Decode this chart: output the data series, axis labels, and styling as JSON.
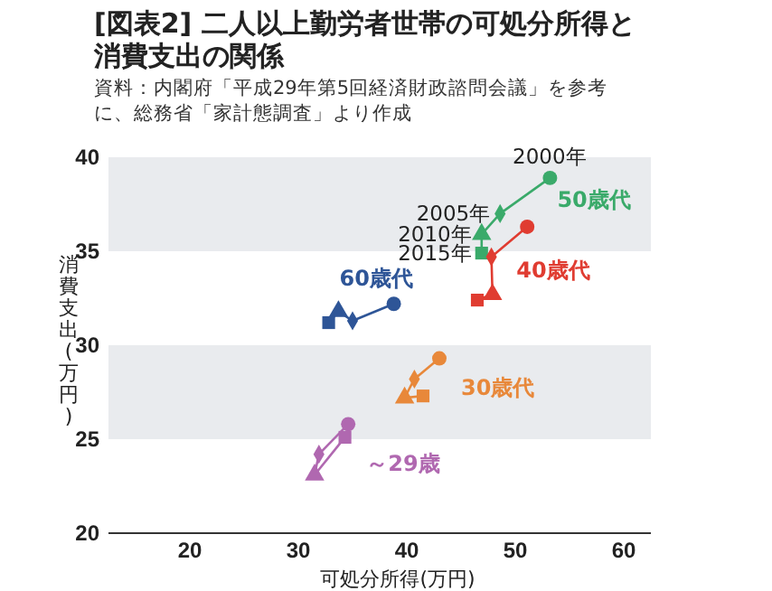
{
  "chart_data": {
    "type": "line",
    "title": "[図表2] 二人以上勤労者世帯の可処分所得と消費支出の関係",
    "annotations": [
      "資料：内閣府「平成29年第5回経済財政諮問会議」を参考に、総務省「家計態調査」より作成",
      {
        "text": "2000年",
        "x": 53.2,
        "y": 38.9
      },
      {
        "text": "2005年",
        "x": 48.6,
        "y": 37.0
      },
      {
        "text": "2010年",
        "x": 46.9,
        "y": 35.9
      },
      {
        "text": "2015年",
        "x": 46.9,
        "y": 34.9
      }
    ],
    "xlabel": "可処分所得(万円)",
    "ylabel": "消費支出(万円)",
    "xlim": [
      12.5,
      62.5
    ],
    "xticks": [
      20,
      30,
      40,
      50,
      60
    ],
    "ylim": [
      20,
      40
    ],
    "yticks": [
      20,
      25,
      30,
      35,
      40
    ],
    "bands": [
      {
        "axis": "y",
        "from": 35,
        "to": 40,
        "color": "#e9ebee"
      },
      {
        "axis": "y",
        "from": 25,
        "to": 30,
        "color": "#e9ebee"
      }
    ],
    "marker": [
      "circle",
      "diamond",
      "triangle",
      "square"
    ],
    "grid": false,
    "series": [
      {
        "name": "50歳代",
        "color": "#3aaa6a",
        "x": [
          53.2,
          48.6,
          46.9,
          46.9
        ],
        "values": [
          38.9,
          37.0,
          35.9,
          34.9
        ]
      },
      {
        "name": "40歳代",
        "color": "#e03c31",
        "x": [
          51.1,
          47.8,
          47.9,
          46.5
        ],
        "values": [
          36.3,
          34.7,
          32.7,
          32.4
        ]
      },
      {
        "name": "60歳代",
        "color": "#2e5597",
        "x": [
          38.8,
          35.0,
          33.7,
          32.8
        ],
        "values": [
          32.2,
          31.3,
          31.8,
          31.2
        ]
      },
      {
        "name": "30歳代",
        "color": "#e8883a",
        "x": [
          43.0,
          40.7,
          39.8,
          41.5
        ],
        "values": [
          29.3,
          28.2,
          27.2,
          27.3
        ]
      },
      {
        "name": "～29歳",
        "color": "#b068b0",
        "x": [
          34.6,
          31.9,
          31.5,
          34.3
        ],
        "values": [
          25.8,
          24.2,
          23.1,
          25.1
        ]
      }
    ]
  }
}
